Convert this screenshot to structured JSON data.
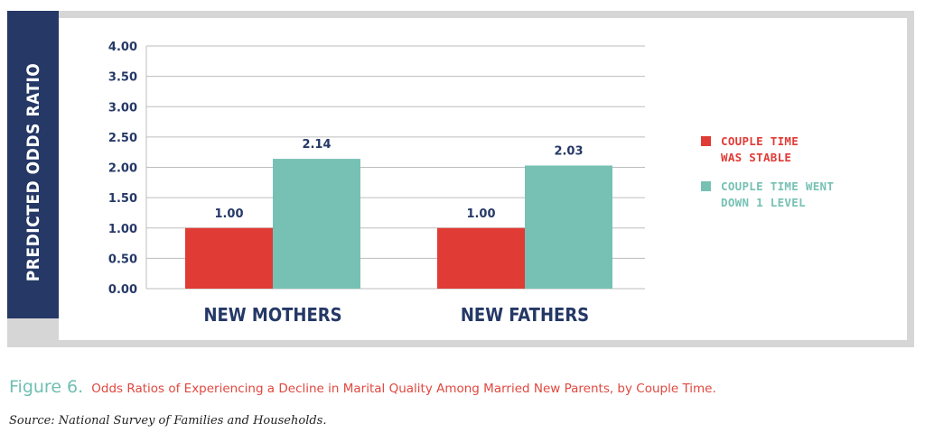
{
  "colors": {
    "stable": "#e03b35",
    "down": "#76c1b4",
    "navy": "#253866",
    "frame": "#d6d6d6",
    "grid": "#bdbdbd"
  },
  "chart_data": {
    "type": "bar",
    "title": "",
    "xlabel": "",
    "ylabel": "PREDICTED ODDS RATIO",
    "ylim": [
      0,
      4
    ],
    "yticks": [
      "0.00",
      "0.50",
      "1.00",
      "1.50",
      "2.00",
      "2.50",
      "3.00",
      "3.50",
      "4.00"
    ],
    "grid": true,
    "legend_position": "right",
    "categories": [
      "NEW MOTHERS",
      "NEW FATHERS"
    ],
    "series": [
      {
        "name": "COUPLE TIME\nWAS STABLE",
        "values": [
          1.0,
          1.0
        ],
        "labels": [
          "1.00",
          "1.00"
        ]
      },
      {
        "name": "COUPLE TIME WENT\nDOWN 1 LEVEL",
        "values": [
          2.14,
          2.03
        ],
        "labels": [
          "2.14",
          "2.03"
        ]
      }
    ]
  },
  "caption": {
    "number": "Figure 6.",
    "text": "Odds Ratios of Experiencing a Decline in Marital Quality Among Married New Parents, by Couple Time."
  },
  "source": "Source: National Survey of Families and Households."
}
